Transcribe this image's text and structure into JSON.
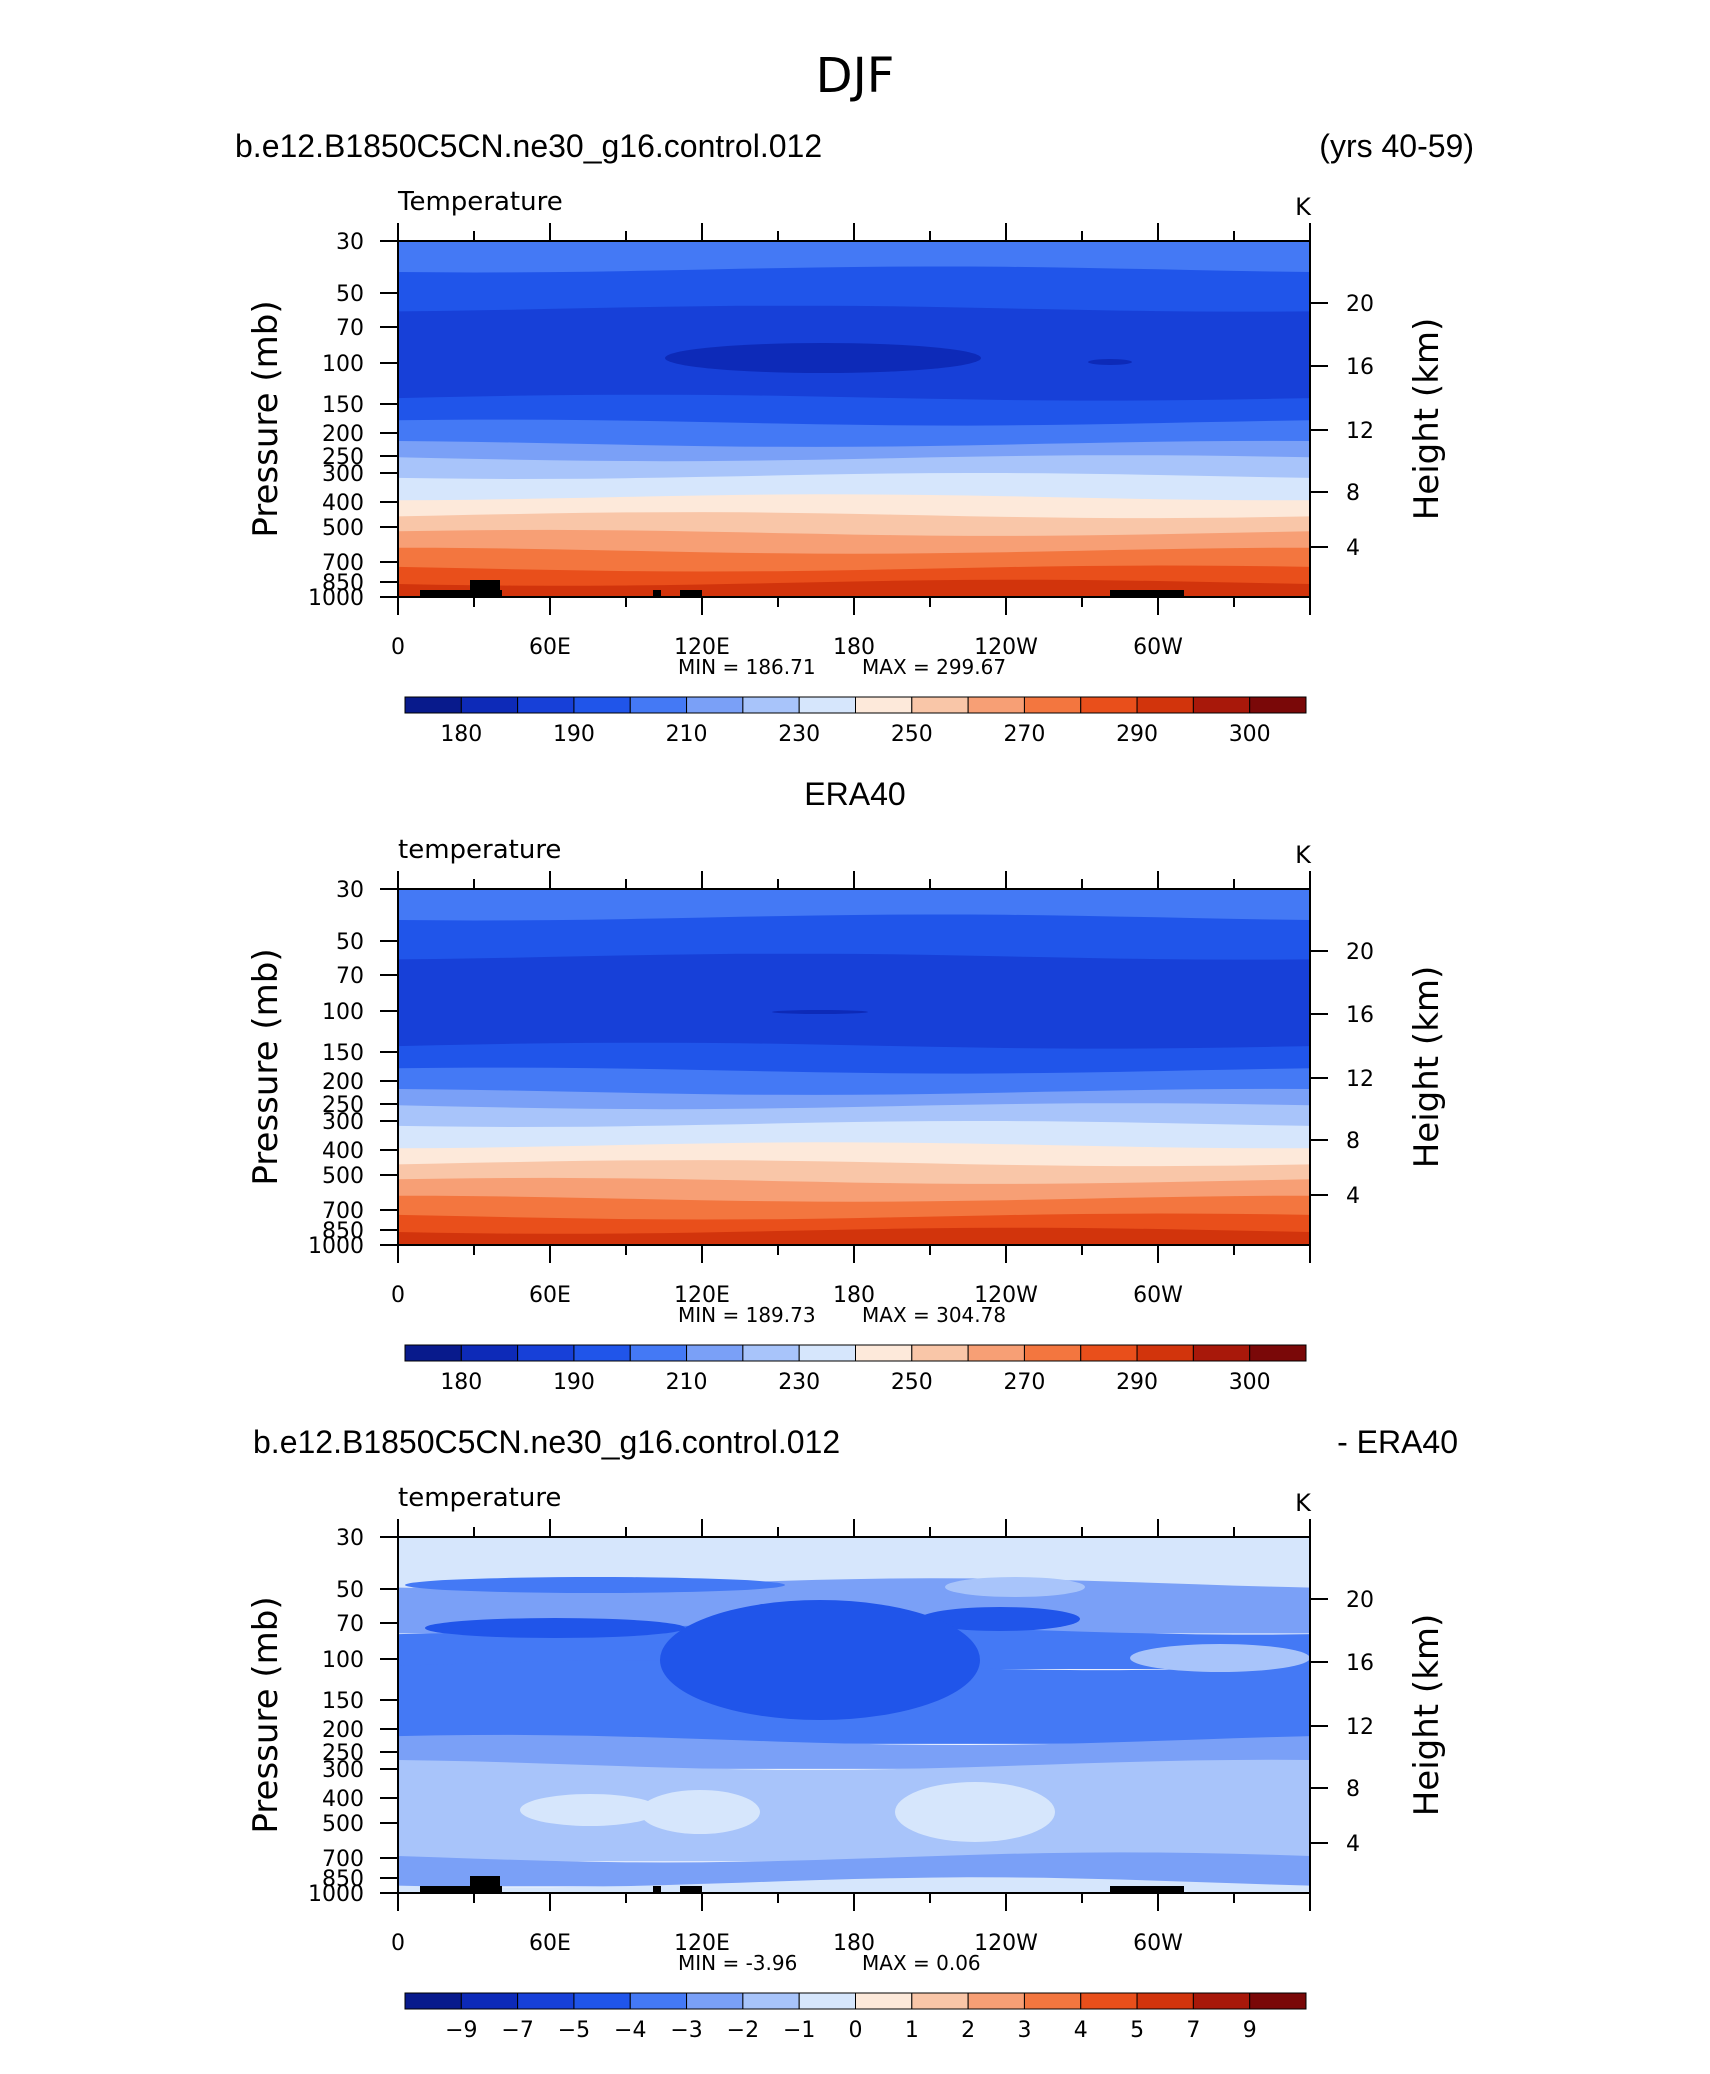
{
  "title": "DJF",
  "chart_data": [
    {
      "type": "heatmap",
      "left_title": "b.e12.B1850C5CN.ne30_g16.control.012",
      "right_title": "(yrs 40-59)",
      "variable_label": "Temperature",
      "units": "K",
      "ylabel": "Pressure (mb)",
      "ylabel_right": "Height (km)",
      "x_ticks": [
        "0",
        "60E",
        "120E",
        "180",
        "120W",
        "60W"
      ],
      "x_range": [
        0,
        360
      ],
      "y_ticks": [
        "30",
        "50",
        "70",
        "100",
        "150",
        "200",
        "250",
        "300",
        "400",
        "500",
        "700",
        "850",
        "1000"
      ],
      "y_ticks_right": [
        "20",
        "16",
        "12",
        "8",
        "4"
      ],
      "min_label": "MIN = 186.71",
      "max_label": "MAX = 299.67",
      "min": 186.71,
      "max": 299.67,
      "colorbar_labels": [
        "180",
        "190",
        "210",
        "230",
        "250",
        "270",
        "290",
        "300"
      ],
      "colorbar_colors": [
        "#081a8c",
        "#0d2ab8",
        "#1740d8",
        "#2055ea",
        "#4479f5",
        "#7aa0f7",
        "#a8c4fa",
        "#d6e6fc",
        "#fde9da",
        "#f9c6a8",
        "#f79f75",
        "#f3763f",
        "#e94f1b",
        "#d2340c",
        "#a8180a",
        "#7a0808"
      ]
    },
    {
      "type": "heatmap",
      "left_title": "",
      "center_title": "ERA40",
      "variable_label": "temperature",
      "units": "K",
      "ylabel": "Pressure (mb)",
      "ylabel_right": "Height (km)",
      "x_ticks": [
        "0",
        "60E",
        "120E",
        "180",
        "120W",
        "60W"
      ],
      "x_range": [
        0,
        360
      ],
      "y_ticks": [
        "30",
        "50",
        "70",
        "100",
        "150",
        "200",
        "250",
        "300",
        "400",
        "500",
        "700",
        "850",
        "1000"
      ],
      "y_ticks_right": [
        "20",
        "16",
        "12",
        "8",
        "4"
      ],
      "min_label": "MIN = 189.73",
      "max_label": "MAX = 304.78",
      "min": 189.73,
      "max": 304.78,
      "colorbar_labels": [
        "180",
        "190",
        "210",
        "230",
        "250",
        "270",
        "290",
        "300"
      ],
      "colorbar_colors": [
        "#081a8c",
        "#0d2ab8",
        "#1740d8",
        "#2055ea",
        "#4479f5",
        "#7aa0f7",
        "#a8c4fa",
        "#d6e6fc",
        "#fde9da",
        "#f9c6a8",
        "#f79f75",
        "#f3763f",
        "#e94f1b",
        "#d2340c",
        "#a8180a",
        "#7a0808"
      ]
    },
    {
      "type": "heatmap",
      "left_title": "b.e12.B1850C5CN.ne30_g16.control.012",
      "right_title": "- ERA40",
      "variable_label": "temperature",
      "units": "K",
      "ylabel": "Pressure (mb)",
      "ylabel_right": "Height (km)",
      "x_ticks": [
        "0",
        "60E",
        "120E",
        "180",
        "120W",
        "60W"
      ],
      "x_range": [
        0,
        360
      ],
      "y_ticks": [
        "30",
        "50",
        "70",
        "100",
        "150",
        "200",
        "250",
        "300",
        "400",
        "500",
        "700",
        "850",
        "1000"
      ],
      "y_ticks_right": [
        "20",
        "16",
        "12",
        "8",
        "4"
      ],
      "min_label": "MIN = -3.96",
      "max_label": "MAX = 0.06",
      "min": -3.96,
      "max": 0.06,
      "colorbar_labels": [
        "−9",
        "−7",
        "−5",
        "−4",
        "−3",
        "−2",
        "−1",
        "0",
        "1",
        "2",
        "3",
        "4",
        "5",
        "7",
        "9"
      ],
      "colorbar_colors": [
        "#081a8c",
        "#0d2ab8",
        "#1740d8",
        "#2055ea",
        "#4479f5",
        "#7aa0f7",
        "#a8c4fa",
        "#d6e6fc",
        "#fde9da",
        "#f9c6a8",
        "#f79f75",
        "#f3763f",
        "#e94f1b",
        "#d2340c",
        "#a8180a",
        "#7a0808"
      ]
    }
  ]
}
